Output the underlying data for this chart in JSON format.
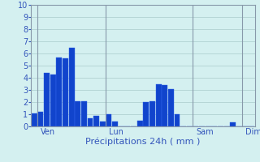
{
  "title": "",
  "xlabel": "Précipitations 24h ( mm )",
  "background_color": "#d4f0f0",
  "bar_color": "#1144cc",
  "bar_edge_color": "#3366ee",
  "grid_color": "#aacccc",
  "text_color": "#3355bb",
  "axis_color": "#8899aa",
  "ylim": [
    0,
    10
  ],
  "yticks": [
    0,
    1,
    2,
    3,
    4,
    5,
    6,
    7,
    8,
    9,
    10
  ],
  "bar_values": [
    1.1,
    1.2,
    4.4,
    4.3,
    5.7,
    5.6,
    6.5,
    2.1,
    2.1,
    0.7,
    0.85,
    0.4,
    1.0,
    0.42,
    0,
    0,
    0,
    0.5,
    2.0,
    2.1,
    3.5,
    3.4,
    3.1,
    1.0,
    0,
    0,
    0,
    0,
    0,
    0,
    0,
    0,
    0.35,
    0,
    0,
    0
  ],
  "num_bars": 36,
  "day_labels": [
    "Ven",
    "Lun",
    "Sam",
    "Dim"
  ],
  "day_bar_indices": [
    1,
    12,
    26,
    34
  ],
  "vline_bar_indices": [
    1,
    12,
    26,
    34
  ],
  "xlabel_fontsize": 8,
  "day_label_fontsize": 7,
  "ytick_fontsize": 7
}
